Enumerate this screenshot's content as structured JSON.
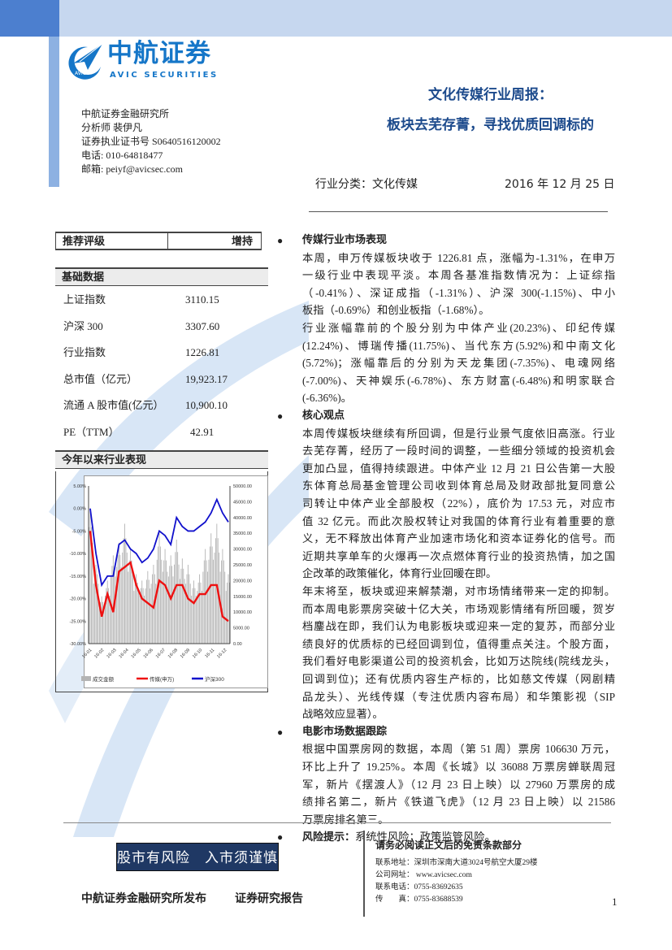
{
  "header": {
    "logo_cn": "中航证券",
    "logo_en": "AVIC SECURITIES",
    "logo_badge": "AVIC",
    "institute": "中航证券金融研究所",
    "analyst": "分析师 裴伊凡",
    "license": "证券执业证书号 S0640516120002",
    "phone": "电话: 010-64818477",
    "email": "邮箱: peiyf@avicsec.com",
    "title_line1": "文化传媒行业周报：",
    "title_line2": "板块去芜存菁，寻找优质回调标的",
    "category": "行业分类：文化传媒",
    "date": "2016 年 12 月 25 日"
  },
  "rating": {
    "label": "推荐评级",
    "value": "增持"
  },
  "basics": {
    "title": "基础数据",
    "rows": [
      {
        "label": "上证指数",
        "value": "3110.15"
      },
      {
        "label": "沪深 300",
        "value": "3307.60"
      },
      {
        "label": "行业指数",
        "value": "1226.81"
      },
      {
        "label": "总市值（亿元）",
        "value": "19,923.17"
      },
      {
        "label": "流通 A 股市值(亿元）",
        "value": "10,900.10"
      },
      {
        "label": "PE（TTM）",
        "value": "42.91"
      }
    ]
  },
  "perf_title": "今年以来行业表现",
  "chart_data": {
    "type": "bar+line",
    "x": [
      "2016-01-04",
      "2016-01-18",
      "2016-02-01",
      "2016-02-15",
      "2016-03-01",
      "2016-03-15",
      "2016-04-01",
      "2016-04-15",
      "2016-05-03",
      "2016-05-16",
      "2016-06-01",
      "2016-06-15",
      "2016-07-01",
      "2016-07-15",
      "2016-08-01",
      "2016-08-15",
      "2016-09-01",
      "2016-09-15",
      "2016-10-10",
      "2016-10-24",
      "2016-11-01",
      "2016-11-15",
      "2016-12-01",
      "2016-12-15",
      "2016-12-23"
    ],
    "x_tick_labels": [
      "16-01",
      "16-02",
      "16-03",
      "16-04",
      "16-05",
      "16-06",
      "16-07",
      "16-08",
      "16-09",
      "16-10",
      "16-11",
      "16-12"
    ],
    "left_ticks": [
      "5.00%",
      "0.00%",
      "-5.00%",
      "-10.00%",
      "-15.00%",
      "-20.00%",
      "-25.00%",
      "-30.00%"
    ],
    "right_ticks": [
      "50000.00",
      "45000.00",
      "40000.00",
      "35000.00",
      "30000.00",
      "25000.00",
      "20000.00",
      "15000.00",
      "10000.00",
      "5000.00",
      "0.00"
    ],
    "ylim_left": [
      -30,
      5
    ],
    "ylim_right": [
      0,
      50000
    ],
    "series": [
      {
        "name": "成交金额",
        "type": "bar",
        "axis": "right",
        "color": "#b4b4b4",
        "values": [
          42000,
          25000,
          15000,
          20000,
          28000,
          32000,
          38000,
          30000,
          22000,
          20000,
          23000,
          25000,
          35000,
          30000,
          28000,
          33000,
          27000,
          25000,
          20000,
          22000,
          30000,
          35000,
          38000,
          30000,
          22000
        ]
      },
      {
        "name": "传媒(申万)",
        "type": "line",
        "axis": "left",
        "color": "#ee1111",
        "values": [
          -5,
          -17,
          -24,
          -19,
          -23,
          -14,
          -13,
          -12,
          -17,
          -20,
          -21,
          -22,
          -16,
          -17,
          -20,
          -17,
          -17,
          -20,
          -21,
          -19,
          -19,
          -17,
          -17,
          -24,
          -25
        ]
      },
      {
        "name": "沪深300",
        "type": "line",
        "axis": "left",
        "color": "#1010cc",
        "values": [
          0,
          -10,
          -17,
          -15,
          -15,
          -8,
          -7,
          -9,
          -10,
          -12,
          -11,
          -9,
          -5,
          -6,
          -8,
          -2,
          -4,
          -5,
          -5,
          -4,
          -3,
          -1,
          2,
          -1,
          -3
        ]
      }
    ],
    "legend": "bottom"
  },
  "sections": [
    {
      "heading": "传媒行业市场表现",
      "lines": [
        "本周，申万传媒板块收于 1226.81 点，涨幅为-1.31%，在申万",
        "一级行业中表现平淡。本周各基准指数情况为：上证综指",
        "（-0.41%）、深证成指（-1.31%）、沪深 300(-1.15%)、中小",
        "板指（-0.69%）和创业板指（-1.68%）。",
        "行业涨幅靠前的个股分别为中体产业(20.23%)、印纪传媒",
        "(12.24%)、博瑞传播(11.75%)、当代东方(5.92%)和中南文化",
        "(5.72%)；涨幅靠后的分别为天龙集团(-7.35%)、电魂网络",
        "(-7.00%)、天神娱乐(-6.78%)、东方财富(-6.48%)和明家联合",
        "(-6.36%)。"
      ],
      "last": [
        3,
        8
      ]
    },
    {
      "heading": "核心观点",
      "lines": [
        "本周传媒板块继续有所回调，但是行业景气度依旧高涨。行业",
        "去芜存菁，经历了一段时间的调整，一些细分领域的投资机会",
        "更加凸显，值得持续跟进。中体产业 12 月 21 日公告第一大股",
        "东体育总局基金管理公司收到体育总局及财政部批复同意公",
        "司转让中体产业全部股权（22%），底价为 17.53 元，对应市",
        "值 32 亿元。而此次股权转让对我国的体育行业有着重要的意",
        "义，无不释放出体育产业加速市场化和资本证券化的信号。而",
        "近期共享单车的火爆再一次点燃体育行业的投资热情，加之国",
        "企改革的政策催化，体育行业回暖在即。",
        "年末将至，板块或迎来解禁潮，对市场情绪带来一定的抑制。",
        "而本周电影票房突破十亿大关，市场观影情绪有所回暖，贺岁",
        "档鏖战在即，我们认为电影板块或迎来一定的复苏，而部分业",
        "绩良好的优质标的已经回调到位，值得重点关注。个股方面，",
        "我们看好电影渠道公司的投资机会，比如万达院线(院线龙头，",
        "回调到位)；还有优质内容生产标的，比如慈文传媒（网剧精",
        "品龙头）、光线传媒（专注优质内容布局）和华策影视（SIP",
        "战略效应显著）。"
      ],
      "last": [
        8,
        16
      ]
    },
    {
      "heading": "电影市场数据跟踪",
      "lines": [
        "根据中国票房网的数据，本周（第 51 周）票房 106630 万元，",
        "环比上升了 19.25%。本周《长城》以 36088 万票房蝉联周冠",
        "军，新片《摆渡人》（12 月 23 日上映）以 27960 万票房的成",
        "绩排名第二，新片《铁道飞虎》（12 月 23 日上映）以 21586",
        "万票房排名第三。"
      ],
      "last": [
        4
      ]
    }
  ],
  "risk": {
    "heading": "风险提示：",
    "text": "系统性风险；政策监管风险。"
  },
  "footer": {
    "slogan": "股市有风险　入市须谨慎",
    "publisher": "中航证券金融研究所发布",
    "report_type": "证券研究报告",
    "disclaimer": "请务必阅读正文后的免责条款部分",
    "address": "联系地址：深圳市深南大道3024号航空大厦29楼",
    "website": "公司网址： www.avicsec.com",
    "tel": "联系电话：0755-83692635",
    "fax": "传　　真：0755-83688539",
    "page": "1"
  },
  "colors": {
    "brand": "#1576c8",
    "title": "#1c4a8c",
    "banner": "#c6d7ef",
    "slogan_bg": "#1f3864"
  }
}
